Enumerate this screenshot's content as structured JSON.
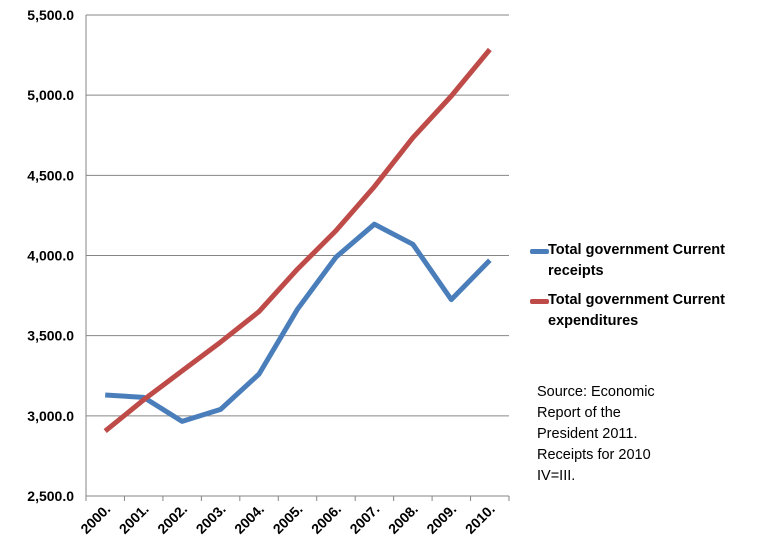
{
  "chart_data": {
    "type": "line",
    "title": "",
    "xlabel": "",
    "ylabel": "",
    "categories": [
      "2000.",
      "2001.",
      "2002.",
      "2003.",
      "2004.",
      "2005.",
      "2006.",
      "2007.",
      "2008.",
      "2009.",
      "2010."
    ],
    "ylim": [
      2500,
      5500
    ],
    "yticks": [
      "2,500.0",
      "3,000.0",
      "3,500.0",
      "4,000.0",
      "4,500.0",
      "5,000.0",
      "5,500.0"
    ],
    "ytick_values": [
      2500,
      3000,
      3500,
      4000,
      4500,
      5000,
      5500
    ],
    "grid": "horizontal",
    "legend_position": "right",
    "series": [
      {
        "name": "Total government Current receipts",
        "color": "#4a7ebb",
        "values": [
          3130,
          3115,
          2965,
          3040,
          3260,
          3665,
          3990,
          4195,
          4070,
          3725,
          3970
        ]
      },
      {
        "name": "Total government Current expenditures",
        "color": "#be4b48",
        "values": [
          2905,
          3100,
          3280,
          3460,
          3650,
          3915,
          4155,
          4430,
          4735,
          4995,
          5285
        ]
      }
    ]
  },
  "note_lines": [
    "Source: Economic",
    "Report of the",
    "President 2011.",
    "Receipts for 2010",
    "IV=III."
  ]
}
